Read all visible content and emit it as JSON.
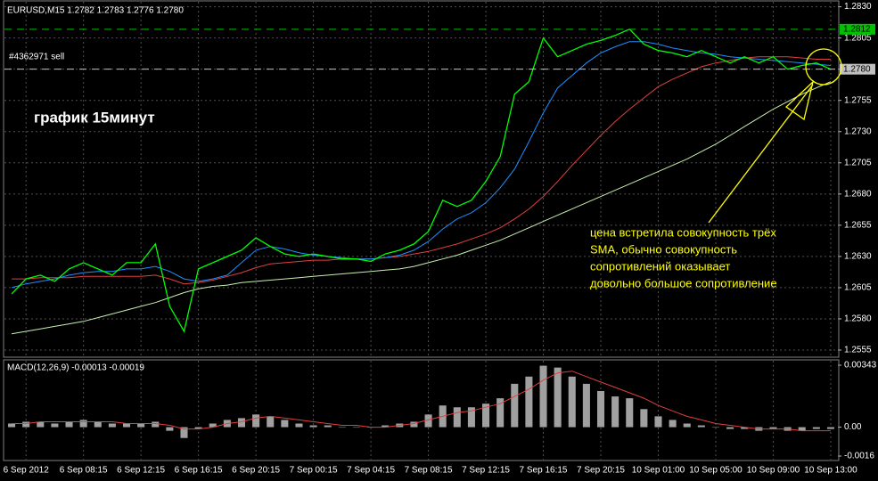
{
  "chart_data": [
    {
      "type": "line",
      "title": "EURUSD,M15  1.2782 1.2783 1.2776 1.2780",
      "annotation": "график 15минут",
      "note_lines": [
        "цена встретила совокупность трёх",
        "SMA, обычно совокупность",
        "сопротивлений оказывает",
        "довольно большое сопротивление"
      ],
      "order_label": "#4362971 sell",
      "categories": [
        null,
        "6 Sep 2012",
        null,
        null,
        null,
        "6 Sep 08:15",
        null,
        null,
        null,
        "6 Sep 12:15",
        null,
        null,
        null,
        "6 Sep 16:15",
        null,
        null,
        null,
        "6 Sep 20:15",
        null,
        null,
        null,
        "7 Sep 00:15",
        null,
        null,
        null,
        "7 Sep 04:15",
        null,
        null,
        null,
        "7 Sep 08:15",
        null,
        null,
        null,
        "7 Sep 12:15",
        null,
        null,
        null,
        "7 Sep 16:15",
        null,
        null,
        null,
        "7 Sep 20:15",
        null,
        null,
        null,
        "10 Sep 01:00",
        null,
        null,
        null,
        "10 Sep 05:00",
        null,
        null,
        null,
        "10 Sep 09:00",
        null,
        null,
        null,
        "10 Sep 13:00"
      ],
      "series": [
        {
          "color": "#00ff00",
          "values": [
            1.26,
            1.2612,
            1.2615,
            1.261,
            1.262,
            1.2625,
            1.262,
            1.2615,
            1.2625,
            1.2625,
            1.264,
            1.259,
            1.257,
            1.262,
            1.2625,
            1.263,
            1.2635,
            1.2645,
            1.2638,
            1.2632,
            1.263,
            1.2632,
            1.263,
            1.2628,
            1.2628,
            1.2626,
            1.2632,
            1.2635,
            1.264,
            1.265,
            1.2675,
            1.267,
            1.2675,
            1.269,
            1.271,
            1.276,
            1.277,
            1.2805,
            1.279,
            1.2795,
            1.28,
            1.2803,
            1.2807,
            1.2812,
            1.28,
            1.2795,
            1.2793,
            1.279,
            1.2795,
            1.279,
            1.2785,
            1.279,
            1.2785,
            1.279,
            1.278,
            1.2783,
            1.2785,
            1.278
          ]
        },
        {
          "color": "#1e90ff",
          "values": [
            1.2605,
            1.2608,
            1.261,
            1.2612,
            1.2615,
            1.2617,
            1.2618,
            1.2618,
            1.262,
            1.262,
            1.2622,
            1.2618,
            1.2612,
            1.261,
            1.2612,
            1.2615,
            1.2625,
            1.2635,
            1.2638,
            1.2636,
            1.2633,
            1.2631,
            1.263,
            1.2629,
            1.2628,
            1.2628,
            1.2629,
            1.2631,
            1.2635,
            1.2642,
            1.2652,
            1.266,
            1.2665,
            1.2673,
            1.2685,
            1.27,
            1.2722,
            1.2745,
            1.2765,
            1.2775,
            1.2785,
            1.2793,
            1.2798,
            1.2802,
            1.2802,
            1.28,
            1.2797,
            1.2795,
            1.2793,
            1.2792,
            1.279,
            1.2789,
            1.2788,
            1.2787,
            1.2786,
            1.2785,
            1.2784,
            1.2783
          ]
        },
        {
          "color": "#e04040",
          "values": [
            1.2612,
            1.2612,
            1.2613,
            1.2613,
            1.2613,
            1.2614,
            1.2614,
            1.2614,
            1.2614,
            1.2614,
            1.2615,
            1.2612,
            1.2608,
            1.2609,
            1.2611,
            1.2614,
            1.2617,
            1.2621,
            1.2624,
            1.2625,
            1.2626,
            1.2627,
            1.2627,
            1.2628,
            1.2628,
            1.2628,
            1.2629,
            1.263,
            1.2632,
            1.2634,
            1.2637,
            1.264,
            1.2644,
            1.2648,
            1.2653,
            1.266,
            1.2668,
            1.2678,
            1.269,
            1.2703,
            1.2715,
            1.2727,
            1.2738,
            1.2748,
            1.2757,
            1.2766,
            1.2772,
            1.2777,
            1.2782,
            1.2785,
            1.2787,
            1.2789,
            1.279,
            1.279,
            1.279,
            1.2789,
            1.2788,
            1.2788
          ]
        },
        {
          "color": "#c8f0b0",
          "values": [
            1.2568,
            1.257,
            1.2572,
            1.2574,
            1.2576,
            1.2578,
            1.2581,
            1.2584,
            1.2587,
            1.259,
            1.2593,
            1.2597,
            1.2601,
            1.2604,
            1.2606,
            1.2607,
            1.2609,
            1.261,
            1.2611,
            1.2612,
            1.2613,
            1.2614,
            1.2615,
            1.2616,
            1.2617,
            1.2618,
            1.2619,
            1.262,
            1.2622,
            1.2625,
            1.2628,
            1.2631,
            1.2635,
            1.2639,
            1.2643,
            1.2648,
            1.2653,
            1.2658,
            1.2663,
            1.2668,
            1.2673,
            1.2678,
            1.2683,
            1.2688,
            1.2693,
            1.2698,
            1.2703,
            1.2708,
            1.2714,
            1.272,
            1.2727,
            1.2734,
            1.2741,
            1.2748,
            1.2754,
            1.276,
            1.2765,
            1.277
          ]
        }
      ],
      "levels": [
        {
          "value": 1.2812,
          "label": "1.2812",
          "color": "#00c000"
        },
        {
          "value": 1.278,
          "label": "1.2780",
          "color": "#c0c0c0"
        }
      ],
      "ylim": [
        1.255,
        1.2834
      ],
      "yticks": [
        {
          "value": 1.283,
          "label": "1.2830"
        },
        {
          "value": 1.2805,
          "label": "1.2805"
        },
        {
          "value": 1.278,
          "label": "1.2780"
        },
        {
          "value": 1.2755,
          "label": "1.2755"
        },
        {
          "value": 1.273,
          "label": "1.2730"
        },
        {
          "value": 1.2705,
          "label": "1.2705"
        },
        {
          "value": 1.268,
          "label": "1.2680"
        },
        {
          "value": 1.2655,
          "label": "1.2655"
        },
        {
          "value": 1.263,
          "label": "1.2630"
        },
        {
          "value": 1.2605,
          "label": "1.2605"
        },
        {
          "value": 1.258,
          "label": "1.2580"
        },
        {
          "value": 1.2555,
          "label": "1.2555"
        }
      ],
      "grid": true
    },
    {
      "type": "bar",
      "title": "MACD(12,26,9) -0.00013 -0.00019",
      "color": "#a0a0a0",
      "values": [
        0.0002,
        0.0003,
        0.0003,
        0.0002,
        0.0003,
        0.0004,
        0.0003,
        0.0002,
        0.0002,
        0.0002,
        0.0003,
        -0.0002,
        -0.0006,
        -0.0001,
        0.0002,
        0.0004,
        0.0005,
        0.0007,
        0.0006,
        0.0004,
        0.0002,
        0.0001,
        0.0001,
        0,
        0,
        0,
        0.0001,
        0.0002,
        0.0003,
        0.0007,
        0.0012,
        0.0011,
        0.0011,
        0.0013,
        0.0016,
        0.0024,
        0.0028,
        0.0034,
        0.0033,
        0.0028,
        0.0024,
        0.002,
        0.0017,
        0.0016,
        0.001,
        0.0006,
        0.0004,
        0.0002,
        0.0001,
        0,
        -0.0001,
        -0.0001,
        -0.0002,
        -0.0001,
        -0.0002,
        -0.0002,
        -0.0001,
        -0.0001
      ],
      "signal": {
        "color": "#e04040",
        "values": [
          0.0002,
          0.0002,
          0.0003,
          0.0003,
          0.0003,
          0.0003,
          0.0003,
          0.0003,
          0.0002,
          0.0002,
          0.0002,
          0.0001,
          -0.0001,
          -0.0001,
          0,
          0.0002,
          0.0003,
          0.0005,
          0.0006,
          0.0005,
          0.0004,
          0.0003,
          0.0002,
          0.0001,
          0.0001,
          0,
          0,
          0.0001,
          0.0002,
          0.0004,
          0.0006,
          0.0008,
          0.0009,
          0.0011,
          0.0013,
          0.0017,
          0.0021,
          0.0026,
          0.003,
          0.0031,
          0.0028,
          0.0025,
          0.0022,
          0.0019,
          0.0016,
          0.0012,
          0.0009,
          0.0006,
          0.0004,
          0.0002,
          0.0001,
          0,
          -0.0001,
          -0.0001,
          -0.0001,
          -0.0002,
          -0.0002,
          -0.0002
        ]
      },
      "ylim": [
        -0.0016,
        0.00343
      ],
      "yticks": [
        {
          "value": 0.00343,
          "label": "0.00343"
        },
        {
          "value": 0,
          "label": "0.00"
        },
        {
          "value": -0.0016,
          "label": "-0.0016"
        }
      ]
    }
  ]
}
